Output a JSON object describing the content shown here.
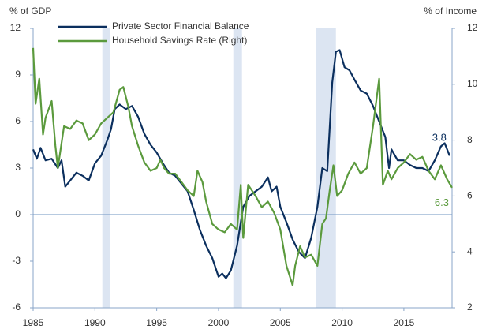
{
  "chart_data": {
    "type": "line",
    "y_label": "% of GDP",
    "y2_label": "% of Income",
    "xlim": [
      1985,
      2018.9
    ],
    "xticks": [
      1985,
      1990,
      1995,
      2000,
      2005,
      2010,
      2015
    ],
    "ylim": [
      -6,
      12
    ],
    "yticks": [
      -6,
      -3,
      0,
      3,
      6,
      9,
      12
    ],
    "y2lim": [
      2,
      12
    ],
    "y2ticks": [
      2,
      4,
      6,
      8,
      10,
      12
    ],
    "zero_line": true,
    "recessions": [
      [
        1990.6,
        1991.2
      ],
      [
        2001.2,
        2001.9
      ],
      [
        2007.9,
        2009.5
      ]
    ],
    "recession_color": "#dce5f2",
    "legend": "top-left",
    "series": [
      {
        "name": "Private Sector Financial Balance",
        "color": "#0b2f5e",
        "axis": "y",
        "end_label": "3.8",
        "x": [
          1985,
          1985.3,
          1985.6,
          1986,
          1986.5,
          1987,
          1987.3,
          1987.6,
          1988,
          1988.5,
          1989,
          1989.5,
          1990,
          1990.5,
          1991,
          1991.3,
          1991.6,
          1992,
          1992.5,
          1993,
          1993.5,
          1994,
          1994.5,
          1995,
          1995.5,
          1996,
          1996.5,
          1997,
          1997.5,
          1998,
          1998.5,
          1999,
          1999.5,
          2000,
          2000.3,
          2000.6,
          2001,
          2001.5,
          2002,
          2002.5,
          2003,
          2003.5,
          2004,
          2004.3,
          2004.7,
          2005,
          2005.5,
          2006,
          2006.5,
          2007,
          2007.5,
          2008,
          2008.4,
          2008.8,
          2009.2,
          2009.5,
          2009.8,
          2010.2,
          2010.6,
          2011,
          2011.5,
          2012,
          2012.5,
          2013,
          2013.5,
          2013.8,
          2014,
          2014.5,
          2015,
          2015.5,
          2016,
          2016.5,
          2017,
          2017.5,
          2018,
          2018.3,
          2018.7
        ],
        "values": [
          4.2,
          3.6,
          4.3,
          3.5,
          3.6,
          3.0,
          3.5,
          1.8,
          2.2,
          2.7,
          2.5,
          2.2,
          3.3,
          3.8,
          4.8,
          5.5,
          6.8,
          7.1,
          6.8,
          7.0,
          6.3,
          5.2,
          4.5,
          4.0,
          3.3,
          2.7,
          2.5,
          2.0,
          1.5,
          0.3,
          -1.0,
          -2.0,
          -2.8,
          -4.0,
          -3.8,
          -4.1,
          -3.6,
          -2.0,
          0.5,
          1.2,
          1.5,
          1.8,
          2.4,
          1.5,
          1.8,
          0.5,
          -0.5,
          -1.6,
          -2.4,
          -2.8,
          -1.5,
          0.5,
          3.0,
          2.8,
          8.5,
          10.5,
          10.6,
          9.5,
          9.3,
          8.7,
          8.0,
          7.8,
          7.0,
          6.0,
          5.0,
          3.0,
          4.2,
          3.5,
          3.5,
          3.2,
          3.0,
          3.0,
          2.8,
          3.5,
          4.4,
          4.6,
          3.8
        ]
      },
      {
        "name": "Household Savings Rate (Right)",
        "color": "#5b9a3d",
        "axis": "y2",
        "end_label": "6.3",
        "x": [
          1985,
          1985.2,
          1985.5,
          1985.8,
          1986,
          1986.5,
          1986.8,
          1987,
          1987.5,
          1988,
          1988.5,
          1989,
          1989.5,
          1990,
          1990.5,
          1991,
          1991.5,
          1992,
          1992.3,
          1992.7,
          1993,
          1993.5,
          1994,
          1994.5,
          1995,
          1995.3,
          1995.6,
          1996,
          1996.5,
          1997,
          1997.5,
          1998,
          1998.3,
          1998.7,
          1999,
          1999.5,
          2000,
          2000.5,
          2001,
          2001.5,
          2001.8,
          2002,
          2002.4,
          2003,
          2003.5,
          2004,
          2004.5,
          2005,
          2005.5,
          2006,
          2006.2,
          2006.6,
          2007,
          2007.5,
          2008,
          2008.4,
          2008.7,
          2009,
          2009.3,
          2009.6,
          2010,
          2010.5,
          2011,
          2011.5,
          2012,
          2012.5,
          2013,
          2013.3,
          2013.7,
          2014,
          2014.5,
          2015,
          2015.5,
          2016,
          2016.5,
          2017,
          2017.5,
          2018,
          2018.5,
          2018.9
        ],
        "values": [
          11.3,
          9.3,
          10.2,
          8.2,
          8.8,
          9.4,
          7.8,
          7.0,
          8.5,
          8.4,
          8.7,
          8.6,
          8.0,
          8.2,
          8.6,
          8.8,
          9.0,
          9.8,
          9.9,
          9.2,
          8.5,
          7.8,
          7.2,
          6.9,
          7.0,
          7.3,
          7.0,
          6.8,
          6.8,
          6.5,
          6.2,
          6.0,
          6.9,
          6.5,
          5.8,
          5.0,
          4.8,
          4.7,
          5.0,
          4.8,
          6.4,
          4.5,
          6.4,
          6.0,
          5.6,
          5.8,
          5.4,
          4.8,
          3.5,
          2.8,
          3.5,
          4.2,
          3.8,
          3.9,
          3.5,
          5.0,
          5.2,
          6.2,
          7.1,
          6.0,
          6.2,
          6.8,
          7.2,
          6.8,
          7.0,
          8.5,
          10.2,
          6.4,
          6.9,
          6.6,
          7.0,
          7.2,
          7.5,
          7.3,
          7.4,
          6.9,
          6.6,
          7.1,
          6.6,
          6.3
        ]
      }
    ]
  }
}
